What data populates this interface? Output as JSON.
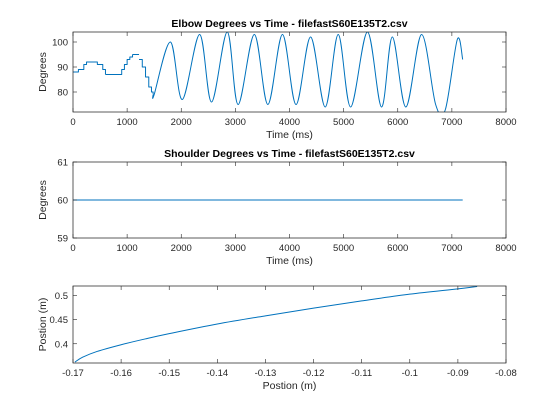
{
  "chart_data": [
    {
      "type": "line",
      "title": "Elbow Degrees vs Time - filefastS60E135T2.csv",
      "xlabel": "Time (ms)",
      "ylabel": "Degrees",
      "xlim": [
        0,
        8000
      ],
      "ylim": [
        72,
        104
      ],
      "xticks": [
        0,
        1000,
        2000,
        3000,
        4000,
        5000,
        6000,
        7000,
        8000
      ],
      "yticks": [
        80,
        90,
        100
      ],
      "grid": false,
      "color": "#0072BD",
      "series": [
        {
          "segments": [
            {
              "kind": "step",
              "x": [
                0,
                100,
                200,
                250,
                400,
                450,
                550,
                600
              ],
              "y": [
                88,
                89,
                91,
                92,
                92,
                91,
                89,
                87
              ]
            },
            {
              "kind": "flat",
              "x": [
                600,
                850
              ],
              "y": [
                87,
                87
              ]
            },
            {
              "kind": "step",
              "x": [
                850,
                900,
                950,
                1000,
                1050,
                1100
              ],
              "y": [
                87,
                89,
                91,
                93,
                94,
                95
              ]
            },
            {
              "kind": "flat",
              "x": [
                1100,
                1220
              ],
              "y": [
                95,
                95
              ]
            },
            {
              "kind": "step",
              "x": [
                1220,
                1280,
                1340,
                1400,
                1450,
                1480
              ],
              "y": [
                93,
                90,
                86,
                82,
                80,
                79
              ]
            },
            {
              "kind": "oscillation",
              "x": [
                1480,
                1500,
                1800,
                2020,
                2340,
                2560,
                2850,
                3050,
                3350,
                3600,
                3870,
                4120,
                4390,
                4660,
                4900,
                5130,
                5440,
                5700,
                5900,
                6150,
                6440,
                6700,
                6880,
                7100,
                7200
              ],
              "y": [
                79,
                79,
                100,
                77,
                103,
                76,
                104,
                75,
                103,
                75,
                103,
                75,
                102,
                74,
                103,
                74,
                104,
                74,
                102,
                74,
                103,
                75,
                73,
                101,
                93
              ]
            }
          ]
        }
      ]
    },
    {
      "type": "line",
      "title": "Shoulder Degrees vs Time - filefastS60E135T2.csv",
      "xlabel": "Time (ms)",
      "ylabel": "Degrees",
      "xlim": [
        0,
        8000
      ],
      "ylim": [
        59,
        61
      ],
      "xticks": [
        0,
        1000,
        2000,
        3000,
        4000,
        5000,
        6000,
        7000,
        8000
      ],
      "yticks": [
        59,
        60,
        61
      ],
      "grid": false,
      "color": "#0072BD",
      "series": [
        {
          "x": [
            0,
            7200
          ],
          "y": [
            60,
            60
          ]
        }
      ]
    },
    {
      "type": "line",
      "title": "",
      "xlabel": "Postion (m)",
      "ylabel": "Postion (m)",
      "xlim": [
        -0.17,
        -0.08
      ],
      "ylim": [
        0.36,
        0.52
      ],
      "xticks": [
        -0.17,
        -0.16,
        -0.15,
        -0.14,
        -0.13,
        -0.12,
        -0.11,
        -0.1,
        -0.09,
        -0.08
      ],
      "xtick_labels": [
        "-0.17",
        "-0.16",
        "-0.15",
        "-0.14",
        "-0.13",
        "-0.12",
        "-0.11",
        "-0.1",
        "-0.09",
        "-0.08"
      ],
      "yticks": [
        0.4,
        0.45,
        0.5
      ],
      "ytick_labels": [
        "0.4",
        "0.45",
        "0.5"
      ],
      "grid": false,
      "color": "#0072BD",
      "series": [
        {
          "x": [
            -0.1696,
            -0.168,
            -0.165,
            -0.16,
            -0.155,
            -0.15,
            -0.14,
            -0.13,
            -0.12,
            -0.11,
            -0.1,
            -0.09,
            -0.086
          ],
          "y": [
            0.362,
            0.372,
            0.384,
            0.398,
            0.41,
            0.421,
            0.441,
            0.458,
            0.474,
            0.489,
            0.503,
            0.514,
            0.519
          ]
        }
      ]
    }
  ]
}
